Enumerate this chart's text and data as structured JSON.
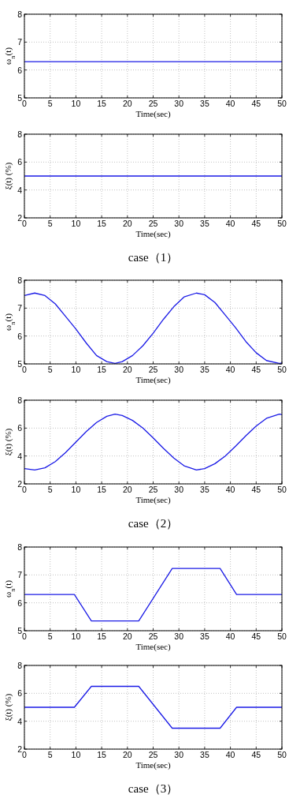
{
  "chart_data": [
    {
      "type": "line",
      "xlabel": "Time(sec)",
      "ylabel": "ω$_{n}$(t)",
      "xlim": [
        0,
        50
      ],
      "ylim": [
        5,
        8
      ],
      "xticks": [
        0,
        5,
        10,
        15,
        20,
        25,
        30,
        35,
        40,
        45,
        50
      ],
      "yticks": [
        5,
        6,
        7,
        8
      ],
      "grid": true,
      "line_style": "solid",
      "series": [
        {
          "color": "#1a1ae6",
          "x": [
            0,
            50
          ],
          "values": [
            6.3,
            6.3
          ]
        }
      ]
    },
    {
      "type": "line",
      "xlabel": "Time(sec)",
      "ylabel": "ξ(t) (%)",
      "xlim": [
        0,
        50
      ],
      "ylim": [
        2,
        8
      ],
      "xticks": [
        0,
        5,
        10,
        15,
        20,
        25,
        30,
        35,
        40,
        45,
        50
      ],
      "yticks": [
        2,
        4,
        6,
        8
      ],
      "grid": true,
      "line_style": "solid",
      "annotations": [
        "case（1）"
      ],
      "series": [
        {
          "color": "#1a1ae6",
          "x": [
            0,
            50
          ],
          "values": [
            5,
            5
          ]
        }
      ]
    },
    {
      "type": "line",
      "xlabel": "Time(sec)",
      "ylabel": "ω$_{n}$(t)",
      "xlim": [
        0,
        50
      ],
      "ylim": [
        5,
        8
      ],
      "xticks": [
        0,
        5,
        10,
        15,
        20,
        25,
        30,
        35,
        40,
        45,
        50
      ],
      "yticks": [
        5,
        6,
        7,
        8
      ],
      "grid": true,
      "line_style": "solid",
      "series": [
        {
          "color": "#1a1ae6",
          "x": [
            0,
            2,
            4,
            6,
            8,
            10,
            12,
            14,
            16,
            17.6,
            19,
            21,
            23,
            25,
            27,
            29,
            31,
            33.4,
            35,
            37,
            39,
            41,
            43,
            45,
            47,
            49.5,
            50
          ],
          "values": [
            7.45,
            7.54,
            7.45,
            7.15,
            6.7,
            6.25,
            5.75,
            5.3,
            5.08,
            5.02,
            5.08,
            5.3,
            5.65,
            6.1,
            6.6,
            7.05,
            7.4,
            7.54,
            7.48,
            7.2,
            6.75,
            6.3,
            5.8,
            5.4,
            5.12,
            5.02,
            5.03
          ]
        }
      ]
    },
    {
      "type": "line",
      "xlabel": "Time(sec)",
      "ylabel": "ξ(t) (%)",
      "xlim": [
        0,
        50
      ],
      "ylim": [
        2,
        8
      ],
      "xticks": [
        0,
        5,
        10,
        15,
        20,
        25,
        30,
        35,
        40,
        45,
        50
      ],
      "yticks": [
        2,
        4,
        6,
        8
      ],
      "grid": true,
      "line_style": "solid",
      "annotations": [
        "case（2）"
      ],
      "series": [
        {
          "color": "#1a1ae6",
          "x": [
            0,
            2,
            4,
            6,
            8,
            10,
            12,
            14,
            16,
            17.6,
            19,
            21,
            23,
            25,
            27,
            29,
            31,
            33.4,
            35,
            37,
            39,
            41,
            43,
            45,
            47,
            49.5,
            50
          ],
          "values": [
            3.1,
            3.0,
            3.15,
            3.6,
            4.25,
            5.0,
            5.75,
            6.4,
            6.85,
            7.0,
            6.9,
            6.55,
            6.0,
            5.3,
            4.55,
            3.85,
            3.3,
            3.0,
            3.1,
            3.45,
            4.0,
            4.7,
            5.45,
            6.15,
            6.7,
            7.0,
            6.97
          ]
        }
      ]
    },
    {
      "type": "line",
      "xlabel": "Time(sec)",
      "ylabel": "ω$_{n}$(t)",
      "xlim": [
        0,
        50
      ],
      "ylim": [
        5,
        8
      ],
      "xticks": [
        0,
        5,
        10,
        15,
        20,
        25,
        30,
        35,
        40,
        45,
        50
      ],
      "yticks": [
        5,
        6,
        7,
        8
      ],
      "grid": true,
      "line_style": "solid",
      "series": [
        {
          "color": "#1a1ae6",
          "x": [
            0,
            9.7,
            13,
            22.2,
            28.7,
            38,
            41.2,
            50
          ],
          "values": [
            6.3,
            6.3,
            5.35,
            5.35,
            7.23,
            7.23,
            6.3,
            6.3
          ]
        }
      ]
    },
    {
      "type": "line",
      "xlabel": "Time(sec)",
      "ylabel": "ξ(t) (%)",
      "xlim": [
        0,
        50
      ],
      "ylim": [
        2,
        8
      ],
      "xticks": [
        0,
        5,
        10,
        15,
        20,
        25,
        30,
        35,
        40,
        45,
        50
      ],
      "yticks": [
        2,
        4,
        6,
        8
      ],
      "grid": true,
      "line_style": "solid",
      "annotations": [
        "case（3）"
      ],
      "series": [
        {
          "color": "#1a1ae6",
          "x": [
            0,
            9.7,
            13,
            22.2,
            28.7,
            38,
            41.2,
            50
          ],
          "values": [
            5,
            5,
            6.5,
            6.5,
            3.5,
            3.5,
            5,
            5
          ]
        }
      ]
    }
  ]
}
